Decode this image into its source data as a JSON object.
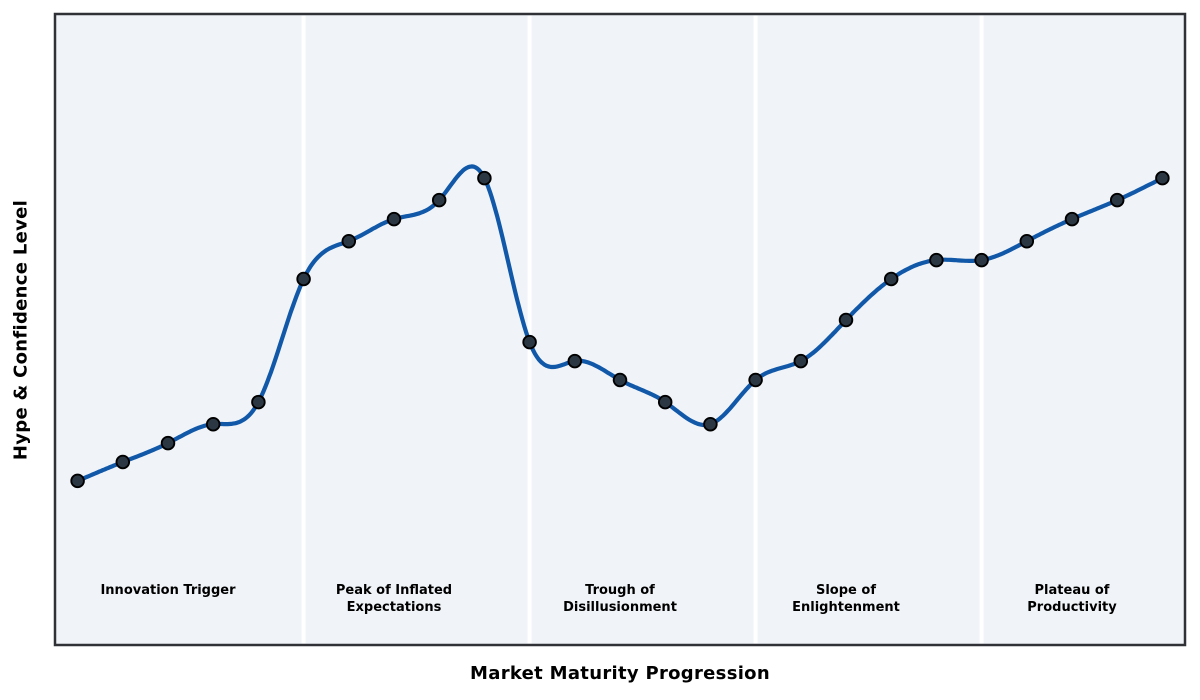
{
  "chart_data": {
    "type": "line",
    "title": "",
    "xlabel": "Market Maturity Progression",
    "ylabel": "Hype & Confidence Level",
    "x": [
      0,
      1,
      2,
      3,
      4,
      5,
      6,
      7,
      8,
      9,
      10,
      11,
      12,
      13,
      14,
      15,
      16,
      17,
      18,
      19,
      20,
      21,
      22,
      23,
      24
    ],
    "values": [
      26,
      29,
      32,
      35,
      38.5,
      58,
      64,
      67.5,
      70.5,
      74,
      48,
      45,
      42,
      38.5,
      35,
      42,
      45,
      51.5,
      58,
      61,
      61,
      64,
      67.5,
      70.5,
      74
    ],
    "xlim": [
      -0.5,
      24.5
    ],
    "ylim": [
      0,
      100
    ],
    "grid": false,
    "legend": "none",
    "axis_ticks": "none",
    "smoothing": "cubic-spline",
    "separators_x": [
      5,
      10,
      15,
      20
    ],
    "phase_label_top_y": 10,
    "phases": [
      {
        "label": "Innovation Trigger",
        "center_x": 2
      },
      {
        "label": "Peak of Inflated\nExpectations",
        "center_x": 7
      },
      {
        "label": "Trough of\nDisillusionment",
        "center_x": 12
      },
      {
        "label": "Slope of\nEnlightenment",
        "center_x": 17
      },
      {
        "label": "Plateau of\nProductivity",
        "center_x": 22
      }
    ],
    "colors": {
      "line": "#1158a8",
      "marker_fill": "#2b3844",
      "marker_edge": "#000000",
      "plot_bg": "#f0f4f8",
      "separator": "#ffffff",
      "border": "#2f3136",
      "text": "#000000"
    }
  }
}
